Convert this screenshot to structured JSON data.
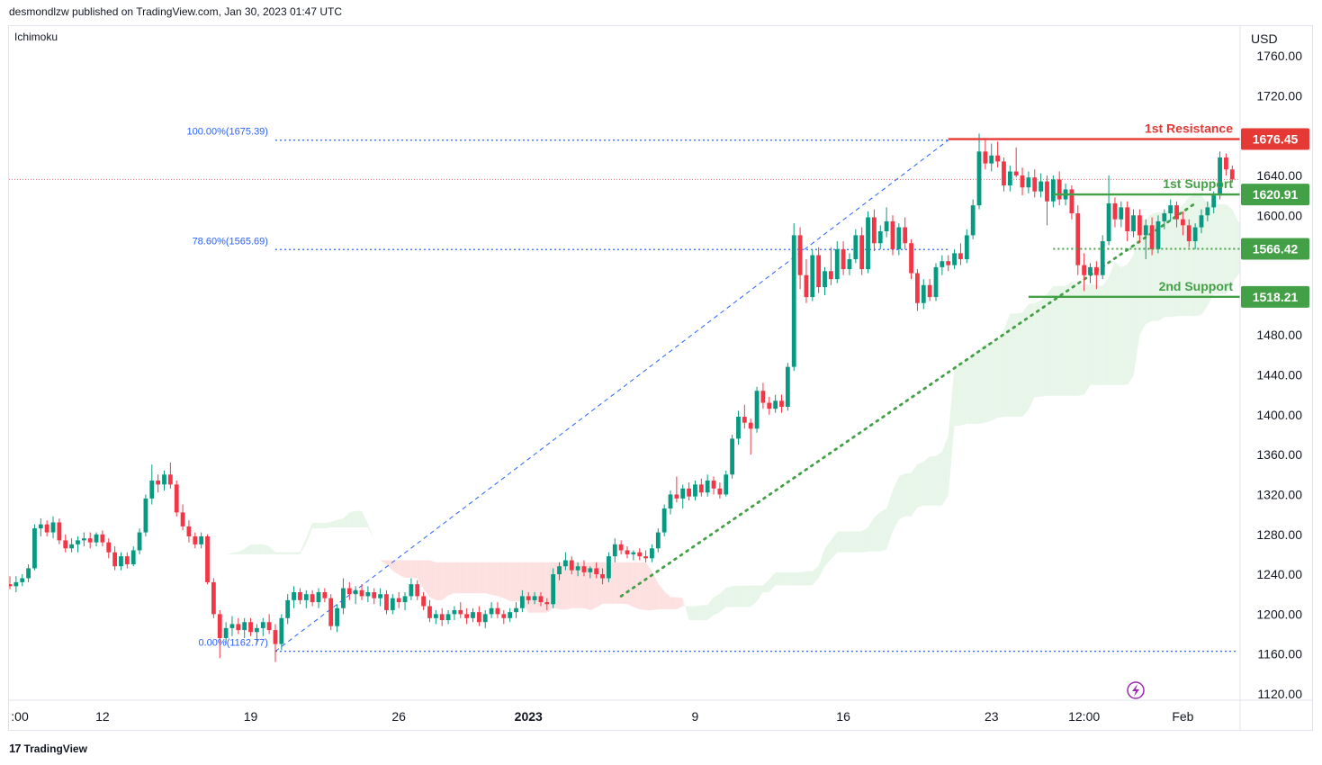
{
  "header": {
    "publisher": "desmondlzw published on TradingView.com, Jan 30, 2023 01:47 UTC"
  },
  "indicator": "Ichimoku",
  "footer": {
    "brand": "TradingView",
    "logo_mark": "17"
  },
  "colors": {
    "up": "#089981",
    "down": "#f23645",
    "resistance": "#e53935",
    "support": "#43a047",
    "fib": "#2962ff",
    "trend": "#43a047",
    "cloud_bull": "#e8f5e9",
    "cloud_bear": "#fde0e0"
  },
  "chart_data": {
    "type": "candlestick",
    "currency": "USD",
    "ylim": [
      1110,
      1775
    ],
    "y_ticks": [
      1760,
      1720,
      1640,
      1600,
      1480,
      1440,
      1400,
      1360,
      1320,
      1280,
      1240,
      1200,
      1160,
      1120
    ],
    "x_ticks": [
      {
        "label": ":00",
        "i": 0,
        "bold": false
      },
      {
        "label": "12",
        "i": 15,
        "bold": false
      },
      {
        "label": "19",
        "i": 39,
        "bold": false
      },
      {
        "label": "26",
        "i": 63,
        "bold": false
      },
      {
        "label": "2023",
        "i": 84,
        "bold": true
      },
      {
        "label": "9",
        "i": 111,
        "bold": false
      },
      {
        "label": "16",
        "i": 135,
        "bold": false
      },
      {
        "label": "23",
        "i": 159,
        "bold": false
      },
      {
        "label": "12:00",
        "i": 174,
        "bold": false
      },
      {
        "label": "Feb",
        "i": 190,
        "bold": false
      }
    ],
    "levels": [
      {
        "name": "1st Resistance",
        "value": 1676.45,
        "label": "1676.45",
        "type": "resistance",
        "from_i": 152
      },
      {
        "name": "1st Support",
        "value": 1620.91,
        "label": "1620.91",
        "type": "support",
        "from_i": 169
      },
      {
        "name": "",
        "value": 1566.42,
        "label": "1566.42",
        "type": "support",
        "from_i": 169
      },
      {
        "name": "2nd Support",
        "value": 1518.21,
        "label": "1518.21",
        "type": "support",
        "from_i": 165
      }
    ],
    "fib": [
      {
        "label": "100.00%(1675.39)",
        "value": 1675.39
      },
      {
        "label": "78.60%(1565.69)",
        "value": 1565.69
      },
      {
        "label": "0.00%(1162.77)",
        "value": 1162.77
      }
    ],
    "fib_diagonal": {
      "from_i": 43,
      "from_v": 1162.77,
      "to_i": 152,
      "to_v": 1675.39
    },
    "trendline": {
      "from_i": 99,
      "from_v": 1218,
      "to_i": 192,
      "to_v": 1612
    },
    "last_price": 1636,
    "ohlc": [
      [
        1230,
        1238,
        1225,
        1228
      ],
      [
        1228,
        1238,
        1222,
        1232
      ],
      [
        1232,
        1240,
        1228,
        1236
      ],
      [
        1236,
        1250,
        1232,
        1246
      ],
      [
        1246,
        1290,
        1244,
        1286
      ],
      [
        1286,
        1296,
        1278,
        1290
      ],
      [
        1290,
        1294,
        1278,
        1282
      ],
      [
        1282,
        1298,
        1276,
        1292
      ],
      [
        1292,
        1296,
        1270,
        1274
      ],
      [
        1274,
        1280,
        1262,
        1266
      ],
      [
        1266,
        1276,
        1262,
        1270
      ],
      [
        1270,
        1278,
        1262,
        1274
      ],
      [
        1274,
        1282,
        1268,
        1276
      ],
      [
        1276,
        1282,
        1266,
        1272
      ],
      [
        1272,
        1282,
        1268,
        1280
      ],
      [
        1280,
        1284,
        1268,
        1272
      ],
      [
        1272,
        1276,
        1256,
        1262
      ],
      [
        1262,
        1268,
        1244,
        1248
      ],
      [
        1248,
        1262,
        1244,
        1258
      ],
      [
        1258,
        1262,
        1246,
        1250
      ],
      [
        1250,
        1268,
        1248,
        1264
      ],
      [
        1264,
        1286,
        1260,
        1282
      ],
      [
        1282,
        1320,
        1278,
        1316
      ],
      [
        1316,
        1350,
        1310,
        1334
      ],
      [
        1334,
        1340,
        1322,
        1330
      ],
      [
        1330,
        1344,
        1324,
        1340
      ],
      [
        1340,
        1352,
        1326,
        1330
      ],
      [
        1330,
        1334,
        1298,
        1302
      ],
      [
        1302,
        1310,
        1284,
        1288
      ],
      [
        1288,
        1294,
        1272,
        1278
      ],
      [
        1278,
        1282,
        1266,
        1270
      ],
      [
        1270,
        1282,
        1266,
        1278
      ],
      [
        1278,
        1280,
        1230,
        1232
      ],
      [
        1232,
        1236,
        1196,
        1200
      ],
      [
        1200,
        1204,
        1156,
        1176
      ],
      [
        1176,
        1192,
        1170,
        1186
      ],
      [
        1186,
        1198,
        1178,
        1190
      ],
      [
        1190,
        1196,
        1180,
        1184
      ],
      [
        1184,
        1196,
        1176,
        1192
      ],
      [
        1192,
        1196,
        1178,
        1182
      ],
      [
        1182,
        1190,
        1170,
        1186
      ],
      [
        1186,
        1196,
        1178,
        1192
      ],
      [
        1192,
        1200,
        1180,
        1184
      ],
      [
        1184,
        1190,
        1152,
        1170
      ],
      [
        1170,
        1200,
        1164,
        1196
      ],
      [
        1196,
        1220,
        1190,
        1214
      ],
      [
        1214,
        1228,
        1206,
        1222
      ],
      [
        1222,
        1226,
        1210,
        1214
      ],
      [
        1214,
        1224,
        1206,
        1220
      ],
      [
        1220,
        1224,
        1208,
        1212
      ],
      [
        1212,
        1226,
        1206,
        1222
      ],
      [
        1222,
        1226,
        1212,
        1216
      ],
      [
        1216,
        1220,
        1184,
        1188
      ],
      [
        1188,
        1210,
        1182,
        1206
      ],
      [
        1206,
        1236,
        1200,
        1226
      ],
      [
        1226,
        1232,
        1214,
        1220
      ],
      [
        1220,
        1228,
        1210,
        1224
      ],
      [
        1224,
        1230,
        1214,
        1218
      ],
      [
        1218,
        1228,
        1212,
        1222
      ],
      [
        1222,
        1226,
        1210,
        1216
      ],
      [
        1216,
        1226,
        1208,
        1220
      ],
      [
        1220,
        1224,
        1200,
        1204
      ],
      [
        1204,
        1220,
        1200,
        1216
      ],
      [
        1216,
        1222,
        1206,
        1212
      ],
      [
        1212,
        1222,
        1204,
        1218
      ],
      [
        1218,
        1236,
        1214,
        1230
      ],
      [
        1230,
        1234,
        1214,
        1218
      ],
      [
        1218,
        1222,
        1204,
        1208
      ],
      [
        1208,
        1214,
        1192,
        1196
      ],
      [
        1196,
        1204,
        1190,
        1200
      ],
      [
        1200,
        1206,
        1188,
        1194
      ],
      [
        1194,
        1204,
        1190,
        1200
      ],
      [
        1200,
        1208,
        1194,
        1204
      ],
      [
        1204,
        1212,
        1196,
        1200
      ],
      [
        1200,
        1206,
        1190,
        1196
      ],
      [
        1196,
        1206,
        1192,
        1202
      ],
      [
        1202,
        1208,
        1188,
        1192
      ],
      [
        1192,
        1204,
        1186,
        1200
      ],
      [
        1200,
        1212,
        1196,
        1206
      ],
      [
        1206,
        1212,
        1196,
        1200
      ],
      [
        1200,
        1204,
        1190,
        1196
      ],
      [
        1196,
        1206,
        1192,
        1202
      ],
      [
        1202,
        1212,
        1196,
        1206
      ],
      [
        1206,
        1224,
        1202,
        1218
      ],
      [
        1218,
        1222,
        1210,
        1214
      ],
      [
        1214,
        1222,
        1210,
        1218
      ],
      [
        1218,
        1222,
        1208,
        1212
      ],
      [
        1212,
        1216,
        1204,
        1210
      ],
      [
        1210,
        1246,
        1206,
        1240
      ],
      [
        1240,
        1252,
        1234,
        1248
      ],
      [
        1248,
        1262,
        1244,
        1254
      ],
      [
        1254,
        1258,
        1240,
        1244
      ],
      [
        1244,
        1252,
        1238,
        1248
      ],
      [
        1248,
        1254,
        1238,
        1242
      ],
      [
        1242,
        1248,
        1236,
        1246
      ],
      [
        1246,
        1252,
        1236,
        1240
      ],
      [
        1240,
        1246,
        1230,
        1236
      ],
      [
        1236,
        1262,
        1232,
        1258
      ],
      [
        1258,
        1276,
        1252,
        1270
      ],
      [
        1270,
        1274,
        1260,
        1264
      ],
      [
        1264,
        1268,
        1256,
        1260
      ],
      [
        1260,
        1264,
        1254,
        1262
      ],
      [
        1262,
        1266,
        1254,
        1258
      ],
      [
        1258,
        1264,
        1252,
        1256
      ],
      [
        1256,
        1270,
        1252,
        1266
      ],
      [
        1266,
        1286,
        1262,
        1282
      ],
      [
        1282,
        1310,
        1278,
        1306
      ],
      [
        1306,
        1324,
        1300,
        1320
      ],
      [
        1320,
        1338,
        1312,
        1316
      ],
      [
        1316,
        1330,
        1306,
        1326
      ],
      [
        1326,
        1332,
        1314,
        1318
      ],
      [
        1318,
        1334,
        1314,
        1330
      ],
      [
        1330,
        1336,
        1318,
        1322
      ],
      [
        1322,
        1340,
        1318,
        1334
      ],
      [
        1334,
        1338,
        1320,
        1326
      ],
      [
        1326,
        1332,
        1316,
        1320
      ],
      [
        1320,
        1344,
        1318,
        1340
      ],
      [
        1340,
        1380,
        1336,
        1376
      ],
      [
        1376,
        1404,
        1370,
        1398
      ],
      [
        1398,
        1410,
        1386,
        1392
      ],
      [
        1392,
        1396,
        1360,
        1386
      ],
      [
        1386,
        1428,
        1382,
        1424
      ],
      [
        1424,
        1432,
        1406,
        1412
      ],
      [
        1412,
        1418,
        1400,
        1406
      ],
      [
        1406,
        1420,
        1402,
        1414
      ],
      [
        1414,
        1420,
        1402,
        1408
      ],
      [
        1408,
        1452,
        1404,
        1448
      ],
      [
        1448,
        1592,
        1444,
        1580
      ],
      [
        1580,
        1588,
        1526,
        1540
      ],
      [
        1540,
        1556,
        1512,
        1518
      ],
      [
        1518,
        1566,
        1514,
        1560
      ],
      [
        1560,
        1568,
        1522,
        1528
      ],
      [
        1528,
        1548,
        1520,
        1544
      ],
      [
        1544,
        1568,
        1530,
        1536
      ],
      [
        1536,
        1574,
        1532,
        1566
      ],
      [
        1566,
        1574,
        1540,
        1546
      ],
      [
        1546,
        1562,
        1540,
        1556
      ],
      [
        1556,
        1586,
        1552,
        1580
      ],
      [
        1580,
        1588,
        1540,
        1546
      ],
      [
        1546,
        1604,
        1542,
        1598
      ],
      [
        1598,
        1606,
        1564,
        1572
      ],
      [
        1572,
        1590,
        1566,
        1584
      ],
      [
        1584,
        1608,
        1578,
        1594
      ],
      [
        1594,
        1600,
        1560,
        1566
      ],
      [
        1566,
        1592,
        1560,
        1588
      ],
      [
        1588,
        1598,
        1566,
        1572
      ],
      [
        1572,
        1576,
        1536,
        1542
      ],
      [
        1542,
        1546,
        1504,
        1512
      ],
      [
        1512,
        1536,
        1506,
        1530
      ],
      [
        1530,
        1536,
        1514,
        1518
      ],
      [
        1518,
        1552,
        1514,
        1548
      ],
      [
        1548,
        1560,
        1540,
        1554
      ],
      [
        1554,
        1560,
        1544,
        1550
      ],
      [
        1550,
        1566,
        1546,
        1562
      ],
      [
        1562,
        1572,
        1550,
        1556
      ],
      [
        1556,
        1586,
        1552,
        1580
      ],
      [
        1580,
        1616,
        1576,
        1610
      ],
      [
        1610,
        1682,
        1606,
        1664
      ],
      [
        1664,
        1676,
        1646,
        1652
      ],
      [
        1652,
        1672,
        1644,
        1660
      ],
      [
        1660,
        1674,
        1648,
        1654
      ],
      [
        1654,
        1658,
        1624,
        1630
      ],
      [
        1630,
        1650,
        1624,
        1644
      ],
      [
        1644,
        1668,
        1638,
        1640
      ],
      [
        1640,
        1648,
        1620,
        1628
      ],
      [
        1628,
        1644,
        1622,
        1638
      ],
      [
        1638,
        1646,
        1618,
        1624
      ],
      [
        1624,
        1642,
        1618,
        1634
      ],
      [
        1634,
        1640,
        1590,
        1614
      ],
      [
        1614,
        1640,
        1608,
        1636
      ],
      [
        1636,
        1644,
        1610,
        1616
      ],
      [
        1616,
        1632,
        1610,
        1626
      ],
      [
        1626,
        1630,
        1596,
        1602
      ],
      [
        1602,
        1610,
        1540,
        1550
      ],
      [
        1550,
        1562,
        1524,
        1540
      ],
      [
        1540,
        1552,
        1532,
        1548
      ],
      [
        1548,
        1554,
        1526,
        1540
      ],
      [
        1540,
        1580,
        1536,
        1574
      ],
      [
        1574,
        1640,
        1570,
        1612
      ],
      [
        1612,
        1618,
        1588,
        1596
      ],
      [
        1596,
        1614,
        1588,
        1608
      ],
      [
        1608,
        1614,
        1574,
        1584
      ],
      [
        1584,
        1606,
        1578,
        1600
      ],
      [
        1600,
        1606,
        1572,
        1580
      ],
      [
        1580,
        1596,
        1556,
        1590
      ],
      [
        1590,
        1598,
        1560,
        1566
      ],
      [
        1566,
        1600,
        1562,
        1594
      ],
      [
        1594,
        1606,
        1586,
        1602
      ],
      [
        1602,
        1616,
        1594,
        1610
      ],
      [
        1610,
        1614,
        1588,
        1596
      ],
      [
        1596,
        1604,
        1580,
        1590
      ],
      [
        1590,
        1596,
        1568,
        1574
      ],
      [
        1574,
        1592,
        1566,
        1588
      ],
      [
        1588,
        1606,
        1582,
        1600
      ],
      [
        1600,
        1614,
        1594,
        1608
      ],
      [
        1608,
        1624,
        1602,
        1620
      ],
      [
        1620,
        1664,
        1616,
        1658
      ],
      [
        1658,
        1662,
        1640,
        1646
      ],
      [
        1646,
        1650,
        1634,
        1636
      ]
    ]
  }
}
